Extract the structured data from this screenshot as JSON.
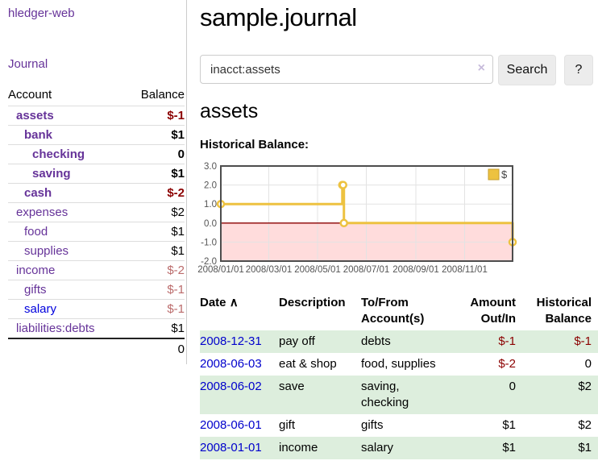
{
  "app": {
    "title": "hledger-web",
    "nav_journal": "Journal"
  },
  "sidebar": {
    "headers": {
      "account": "Account",
      "balance": "Balance"
    },
    "accounts": [
      {
        "name": "assets",
        "balance": "$-1",
        "indent": 1,
        "matched": true,
        "visited": true
      },
      {
        "name": "bank",
        "balance": "$1",
        "indent": 2,
        "matched": true,
        "visited": true
      },
      {
        "name": "checking",
        "balance": "0",
        "indent": 3,
        "matched": true,
        "visited": true
      },
      {
        "name": "saving",
        "balance": "$1",
        "indent": 3,
        "matched": true,
        "visited": true
      },
      {
        "name": "cash",
        "balance": "$-2",
        "indent": 2,
        "matched": true,
        "visited": true
      },
      {
        "name": "expenses",
        "balance": "$2",
        "indent": 1,
        "matched": false,
        "visited": true
      },
      {
        "name": "food",
        "balance": "$1",
        "indent": 2,
        "matched": false,
        "visited": true
      },
      {
        "name": "supplies",
        "balance": "$1",
        "indent": 2,
        "matched": false,
        "visited": true
      },
      {
        "name": "income",
        "balance": "$-2",
        "indent": 1,
        "matched": false,
        "visited": true
      },
      {
        "name": "gifts",
        "balance": "$-1",
        "indent": 2,
        "matched": false,
        "visited": true
      },
      {
        "name": "salary",
        "balance": "$-1",
        "indent": 2,
        "matched": false,
        "visited": false
      },
      {
        "name": "liabilities:debts",
        "balance": "$1",
        "indent": 1,
        "matched": false,
        "visited": true
      }
    ],
    "total": "0"
  },
  "main": {
    "title": "sample.journal",
    "search": {
      "value": "inacct:assets",
      "clear_icon": "×",
      "button_label": "Search",
      "help_label": "?"
    },
    "account_heading": "assets",
    "register": {
      "headers": [
        {
          "label": "Date",
          "align": "left",
          "sorted": true
        },
        {
          "label": "Description",
          "align": "left"
        },
        {
          "label": "To/From Account(s)",
          "align": "left"
        },
        {
          "label": "Amount Out/In",
          "align": "right"
        },
        {
          "label": "Historical Balance",
          "align": "right"
        }
      ],
      "sort_icon": "∧",
      "rows": [
        {
          "date": "2008-12-31",
          "description": "pay off",
          "accounts": "debts",
          "amount": "$-1",
          "balance": "$-1"
        },
        {
          "date": "2008-06-03",
          "description": "eat & shop",
          "accounts": "food, supplies",
          "amount": "$-2",
          "balance": "0"
        },
        {
          "date": "2008-06-02",
          "description": "save",
          "accounts": "saving, checking",
          "amount": "0",
          "balance": "$2"
        },
        {
          "date": "2008-06-01",
          "description": "gift",
          "accounts": "gifts",
          "amount": "$1",
          "balance": "$2"
        },
        {
          "date": "2008-01-01",
          "description": "income",
          "accounts": "salary",
          "amount": "$1",
          "balance": "$1"
        }
      ]
    }
  },
  "chart_data": {
    "type": "line",
    "title": "Historical Balance:",
    "step": true,
    "legend": [
      "$"
    ],
    "legend_position": "top-right",
    "series": [
      {
        "name": "$",
        "points": [
          [
            "2008-01-01",
            1
          ],
          [
            "2008-06-01",
            2
          ],
          [
            "2008-06-02",
            2
          ],
          [
            "2008-06-03",
            0
          ],
          [
            "2008-12-31",
            -1
          ]
        ]
      }
    ],
    "xlim": [
      "2008-01-01",
      "2008-12-31"
    ],
    "ylim": [
      -2,
      3
    ],
    "xticks": [
      "2008/01/01",
      "2008/03/01",
      "2008/05/01",
      "2008/07/01",
      "2008/09/01",
      "2008/11/01"
    ],
    "yticks": [
      "3.0",
      "2.0",
      "1.0",
      "0.0",
      "-1.0",
      "-2.0"
    ],
    "grid": true,
    "colors": {
      "line": "#edc240",
      "marker_fill": "#ffffff",
      "legend_swatch_border": "#c79f2e",
      "negative_fill": "#ffdcdc",
      "zero_line": "#8b0000",
      "grid": "#e3e3e3",
      "border": "#4d4d4d",
      "tick_text": "#545454"
    }
  },
  "colors": {
    "link_purple": "#663399",
    "link_blue": "#0000dd",
    "date_link_blue": "#0000cc",
    "negative_strong": "#8b0000",
    "negative_soft": "#bb6b6b",
    "row_green": "#ddeedd"
  }
}
